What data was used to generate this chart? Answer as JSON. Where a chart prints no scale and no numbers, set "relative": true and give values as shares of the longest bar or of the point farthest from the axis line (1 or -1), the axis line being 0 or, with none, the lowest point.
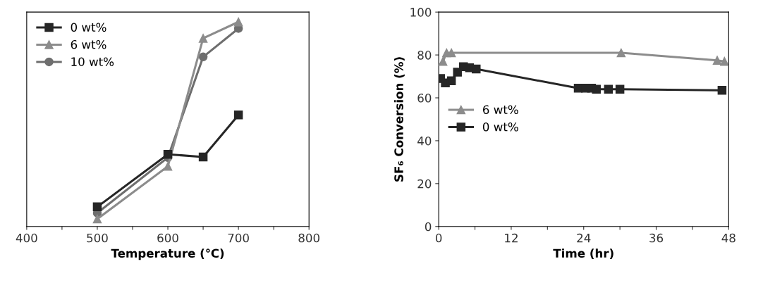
{
  "chart_data": [
    {
      "type": "line",
      "relative": true,
      "xlabel": "Temperature (℃)",
      "x": [
        500,
        600,
        650,
        700
      ],
      "xlim": [
        400,
        800
      ],
      "xticks": [
        400,
        {
          "value": 450,
          "label": null
        },
        500,
        {
          "value": 550,
          "label": null
        },
        600,
        {
          "value": 650,
          "label": null
        },
        700,
        {
          "value": 750,
          "label": null
        },
        800
      ],
      "legend": "top left",
      "grid": false,
      "line_style": "solid",
      "series": [
        {
          "name": "0 wt%",
          "color": "#262626",
          "marker": "square",
          "values": [
            0.096,
            0.353,
            0.34,
            0.545
          ]
        },
        {
          "name": "6 wt%",
          "color": "#8c8c8c",
          "marker": "triangle",
          "values": [
            0.037,
            0.294,
            0.92,
            1
          ]
        },
        {
          "name": "10 wt%",
          "color": "#6e6e6e",
          "marker": "circle",
          "values": [
            0.066,
            0.337,
            0.829,
            0.968
          ]
        }
      ]
    },
    {
      "type": "line",
      "xlabel": "Time (hr)",
      "ylabel": "SF₆ Conversion (%)",
      "xlim": [
        0,
        48
      ],
      "ylim": [
        0,
        100
      ],
      "xticks": [
        0,
        {
          "value": 6,
          "label": null
        },
        12,
        {
          "value": 18,
          "label": null
        },
        24,
        {
          "value": 30,
          "label": null
        },
        36,
        {
          "value": 42,
          "label": null
        },
        48
      ],
      "yticks": [
        0,
        20,
        40,
        60,
        80,
        100
      ],
      "legend": "left",
      "grid": false,
      "line_style": "solid",
      "series": [
        {
          "name": "6 wt%",
          "color": "#8c8c8c",
          "marker": "triangle",
          "x": [
            0.7,
            1.3,
            2.1,
            30.2,
            46.1,
            47.3
          ],
          "values": [
            77,
            81,
            81,
            81,
            77.5,
            77
          ]
        },
        {
          "name": "0 wt%",
          "color": "#262626",
          "marker": "square",
          "x": [
            0.3,
            1.1,
            2.1,
            3.1,
            4.1,
            5.1,
            6.2,
            23.1,
            24.3,
            25.3,
            26.1,
            28.1,
            30,
            46.9
          ],
          "values": [
            69,
            67,
            68,
            72,
            74.5,
            74,
            73.5,
            64.5,
            64.5,
            64.5,
            64,
            64,
            64,
            63.5
          ]
        }
      ]
    }
  ]
}
